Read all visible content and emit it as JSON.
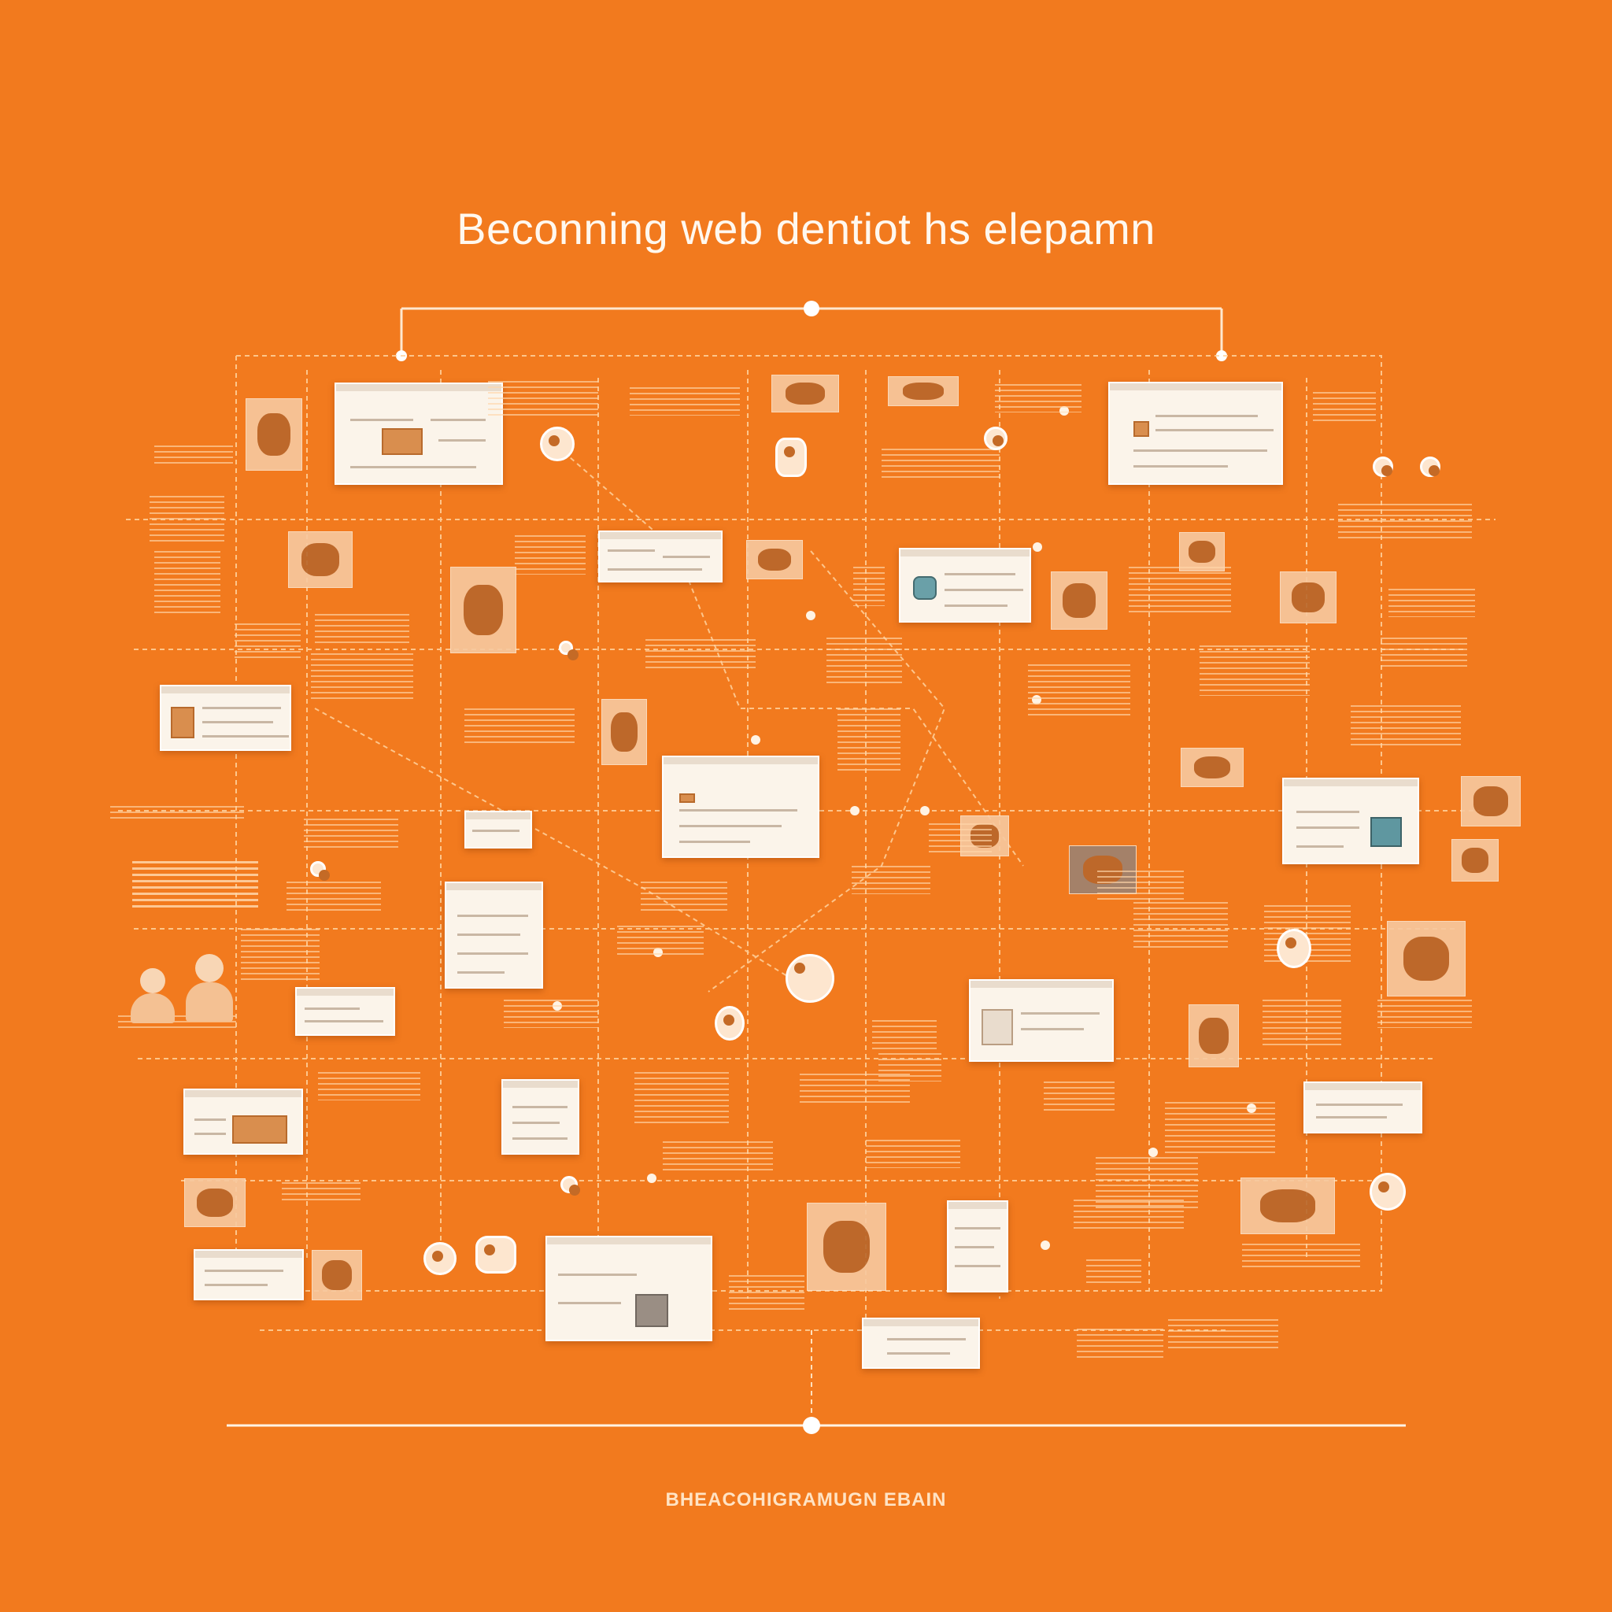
{
  "title": "Beconning web dentiot hs elepamn",
  "footer": "BHEACOHIGRAMUGN EBAIN",
  "colors": {
    "background": "#f27a1e",
    "connector": "#ffd9ad",
    "card": "#fbf4ea",
    "accent": "#ffffff"
  },
  "icons": {
    "top_hub": "hub-node-icon",
    "bottom_hub": "hub-node-icon",
    "people": "people-icon",
    "nodes": "circle-node-icon"
  }
}
